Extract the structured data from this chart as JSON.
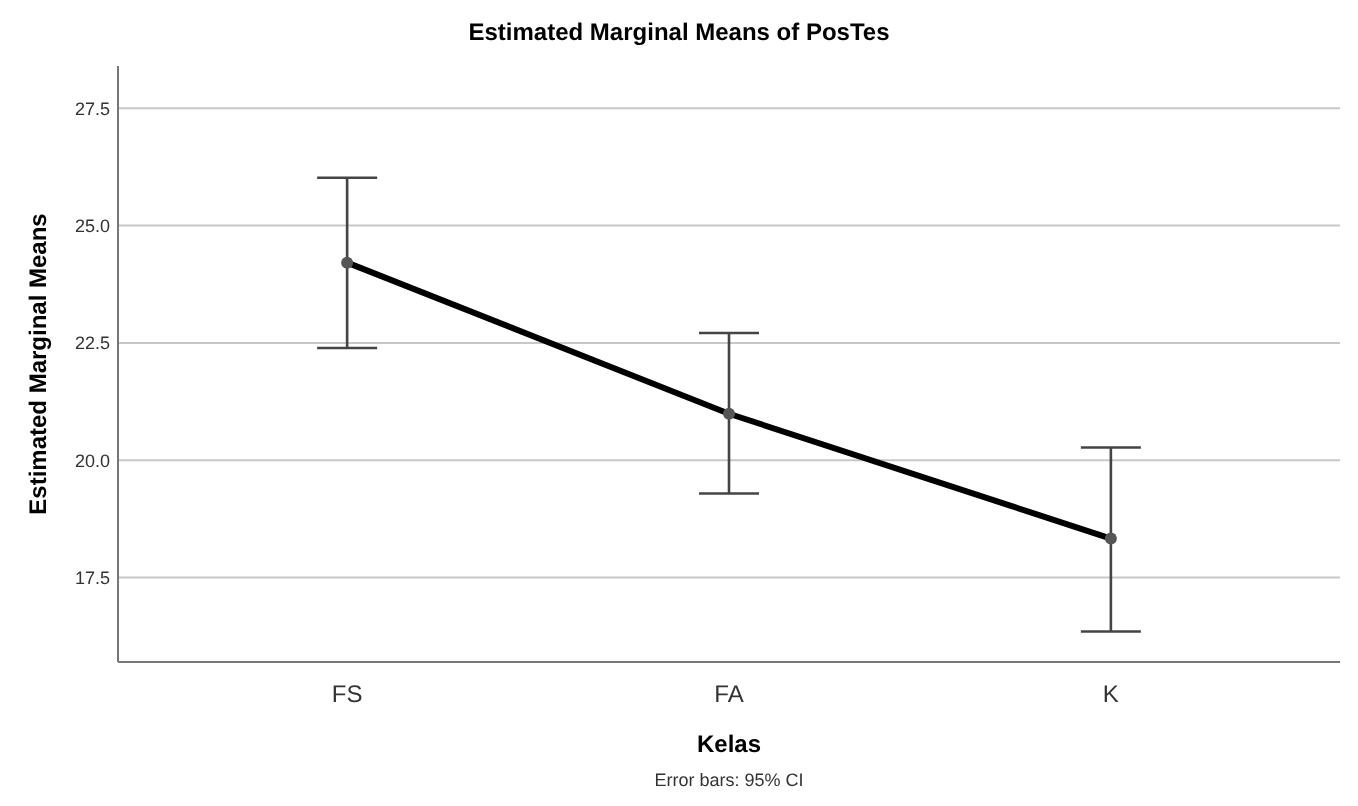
{
  "chart_data": {
    "type": "line",
    "title": "Estimated Marginal Means of PosTes",
    "xlabel": "Kelas",
    "ylabel": "Estimated Marginal Means",
    "categories": [
      "FS",
      "FA",
      "K"
    ],
    "series": [
      {
        "color": "#000000",
        "values": [
          24.21,
          20.99,
          18.33
        ],
        "errors": [
          [
            22.39,
            26.02
          ],
          [
            19.29,
            22.71
          ],
          [
            16.35,
            20.27
          ]
        ]
      }
    ],
    "ylim": [
      15.7,
      28.4
    ],
    "yticks": [
      17.5,
      {
        "value": 20,
        "label": "20.0"
      },
      22.5,
      {
        "value": 25,
        "label": "25.0"
      },
      27.5
    ],
    "grid": "y",
    "marker": "circle",
    "line_style": "solid",
    "annotations": [
      "Error bars: 95% CI"
    ]
  }
}
